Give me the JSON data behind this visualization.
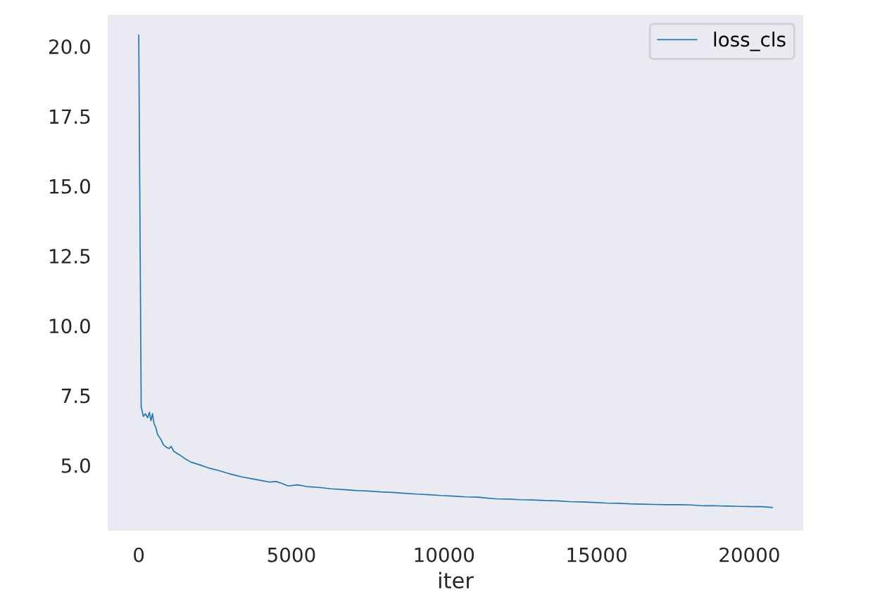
{
  "chart_data": {
    "type": "line",
    "xlabel": "iter",
    "series": [
      {
        "name": "loss_cls",
        "color": "#1f77b4",
        "x": [
          0,
          80,
          150,
          220,
          290,
          350,
          400,
          450,
          500,
          560,
          620,
          680,
          740,
          800,
          900,
          1000,
          1060,
          1150,
          1300,
          1500,
          1700,
          1900,
          2100,
          2300,
          2600,
          2900,
          3100,
          3400,
          3700,
          4000,
          4300,
          4500,
          4700,
          4900,
          5200,
          5500,
          5900,
          6300,
          6700,
          7100,
          7500,
          7900,
          8300,
          8700,
          9100,
          9500,
          9900,
          10300,
          10700,
          11100,
          11400,
          11700,
          12100,
          12500,
          12900,
          13300,
          13700,
          14100,
          14500,
          14900,
          15300,
          15700,
          16100,
          16500,
          16900,
          17300,
          17700,
          18100,
          18500,
          18900,
          19300,
          19700,
          20100,
          20400,
          20750
        ],
        "values": [
          20.4,
          7.1,
          6.75,
          6.85,
          6.7,
          6.9,
          6.6,
          6.85,
          6.5,
          6.35,
          6.1,
          6.0,
          5.9,
          5.75,
          5.65,
          5.6,
          5.68,
          5.5,
          5.4,
          5.25,
          5.12,
          5.05,
          4.98,
          4.9,
          4.82,
          4.72,
          4.66,
          4.58,
          4.52,
          4.46,
          4.4,
          4.42,
          4.35,
          4.26,
          4.3,
          4.24,
          4.21,
          4.16,
          4.13,
          4.1,
          4.08,
          4.05,
          4.03,
          4.0,
          3.97,
          3.95,
          3.92,
          3.9,
          3.87,
          3.86,
          3.83,
          3.8,
          3.79,
          3.77,
          3.76,
          3.74,
          3.73,
          3.7,
          3.69,
          3.67,
          3.65,
          3.64,
          3.62,
          3.61,
          3.6,
          3.59,
          3.59,
          3.58,
          3.55,
          3.55,
          3.54,
          3.53,
          3.52,
          3.52,
          3.49
        ]
      }
    ],
    "xlim": [
      -1040,
      21790
    ],
    "xticks": [
      0,
      5000,
      10000,
      15000,
      20000
    ],
    "ylim": [
      2.63,
      21.16
    ],
    "yticks": [
      {
        "value": 5,
        "label": "5.0"
      },
      {
        "value": 7.5,
        "label": "7.5"
      },
      {
        "value": 10,
        "label": "10.0"
      },
      {
        "value": 12.5,
        "label": "12.5"
      },
      {
        "value": 15,
        "label": "15.0"
      },
      {
        "value": 17.5,
        "label": "17.5"
      },
      {
        "value": 20,
        "label": "20.0"
      }
    ],
    "grid": false,
    "legend": "top right",
    "line_style": "solid",
    "marker": "none"
  }
}
